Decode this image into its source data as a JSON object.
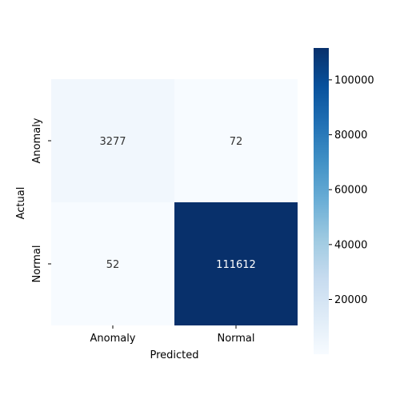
{
  "chart_data": {
    "type": "heatmap",
    "title": "",
    "xlabel": "Predicted",
    "ylabel": "Actual",
    "x_categories": [
      "Anomaly",
      "Normal"
    ],
    "y_categories": [
      "Anomaly",
      "Normal"
    ],
    "values": [
      [
        3277,
        72
      ],
      [
        52,
        111612
      ]
    ],
    "colormap": "Blues",
    "color_low": "#f7fbff",
    "color_high": "#08306b",
    "colorbar": {
      "min": 52,
      "max": 111612,
      "ticks": [
        20000,
        40000,
        60000,
        80000,
        100000
      ],
      "tick_labels": [
        "20000",
        "40000",
        "60000",
        "80000",
        "100000"
      ]
    },
    "annotation_color_light": "#333333",
    "annotation_color_dark": "#ffffff"
  }
}
